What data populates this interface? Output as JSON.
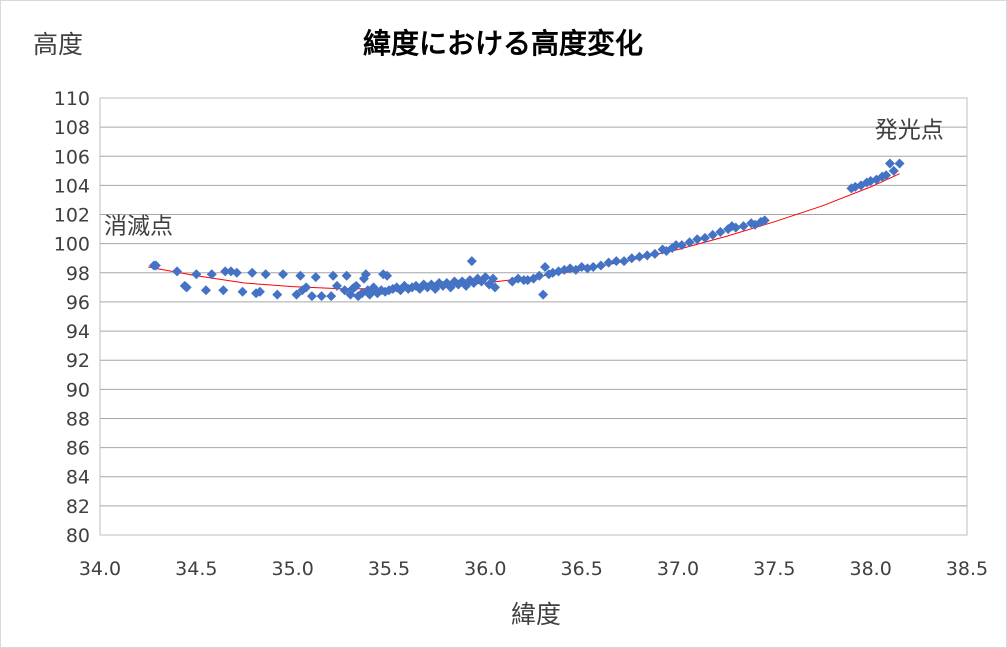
{
  "chart_data": {
    "type": "scatter",
    "title": "緯度における高度変化",
    "xlabel": "緯度",
    "ylabel": "高度",
    "xlim": [
      34.0,
      38.5
    ],
    "ylim": [
      80,
      110
    ],
    "x_ticks": [
      "34.0",
      "34.5",
      "35.0",
      "35.5",
      "36.0",
      "36.5",
      "37.0",
      "37.5",
      "38.0",
      "38.5"
    ],
    "y_ticks": [
      "80",
      "82",
      "84",
      "86",
      "88",
      "90",
      "92",
      "94",
      "96",
      "98",
      "100",
      "102",
      "104",
      "106",
      "108",
      "110"
    ],
    "grid": {
      "horizontal": true,
      "vertical": false
    },
    "legend": "none",
    "colors": {
      "points": "#4472c4",
      "trendline": "#ff0000"
    },
    "annotations": [
      {
        "text": "発光点",
        "x": 38.2,
        "y": 107.3
      },
      {
        "text": "消滅点",
        "x": 34.2,
        "y": 100.7
      }
    ],
    "trendline": {
      "type": "polynomial",
      "x": [
        34.25,
        34.5,
        34.75,
        35.0,
        35.25,
        35.5,
        35.75,
        36.0,
        36.25,
        36.5,
        36.75,
        37.0,
        37.25,
        37.5,
        37.75,
        38.0,
        38.15
      ],
      "y": [
        98.4,
        97.8,
        97.3,
        97.05,
        96.9,
        96.9,
        97.05,
        97.3,
        97.7,
        98.2,
        98.85,
        99.6,
        100.5,
        101.5,
        102.6,
        103.9,
        104.8
      ]
    },
    "series": [
      {
        "x": [
          34.28,
          34.29,
          34.4,
          34.44,
          34.45,
          34.5,
          34.55,
          34.58,
          34.64,
          34.65,
          34.68,
          34.71,
          34.74,
          34.79,
          34.81,
          34.83,
          34.86,
          34.92,
          34.95,
          35.02,
          35.04,
          35.05,
          35.07,
          35.1,
          35.12,
          35.15,
          35.2,
          35.21,
          35.23,
          35.27,
          35.28,
          35.3,
          35.31,
          35.32,
          35.33,
          35.34,
          35.36,
          35.37,
          35.38,
          35.39,
          35.4,
          35.41,
          35.42,
          35.44,
          35.46,
          35.47,
          35.48,
          35.49,
          35.5,
          35.52,
          35.54,
          35.56,
          35.58,
          35.6,
          35.62,
          35.64,
          35.66,
          35.68,
          35.7,
          35.72,
          35.74,
          35.76,
          35.78,
          35.8,
          35.82,
          35.84,
          35.86,
          35.88,
          35.9,
          35.92,
          35.93,
          35.94,
          35.96,
          35.98,
          36.0,
          36.02,
          36.04,
          36.05,
          36.14,
          36.17,
          36.2,
          36.22,
          36.25,
          36.28,
          36.3,
          36.31,
          36.33,
          36.35,
          36.38,
          36.41,
          36.44,
          36.47,
          36.5,
          36.53,
          36.56,
          36.6,
          36.64,
          36.68,
          36.72,
          36.76,
          36.8,
          36.84,
          36.88,
          36.92,
          36.94,
          36.97,
          36.99,
          37.02,
          37.06,
          37.1,
          37.14,
          37.18,
          37.22,
          37.26,
          37.28,
          37.3,
          37.34,
          37.38,
          37.4,
          37.43,
          37.45,
          37.9,
          37.92,
          37.95,
          37.98,
          38.0,
          38.03,
          38.06,
          38.08,
          38.1,
          38.12,
          38.15
        ],
        "y": [
          98.5,
          98.5,
          98.1,
          97.1,
          97.0,
          97.9,
          96.8,
          97.9,
          96.8,
          98.1,
          98.1,
          98.0,
          96.7,
          98.0,
          96.6,
          96.7,
          97.9,
          96.5,
          97.9,
          96.5,
          97.8,
          96.8,
          97.0,
          96.4,
          97.7,
          96.4,
          96.4,
          97.8,
          97.1,
          96.8,
          97.8,
          96.5,
          96.9,
          97.0,
          97.1,
          96.4,
          96.6,
          97.6,
          97.9,
          96.8,
          96.5,
          96.7,
          97.0,
          96.6,
          96.8,
          97.9,
          96.7,
          97.8,
          96.8,
          96.9,
          97.0,
          96.8,
          97.1,
          96.9,
          97.0,
          97.1,
          96.9,
          97.2,
          97.0,
          97.2,
          96.9,
          97.3,
          97.1,
          97.3,
          97.0,
          97.4,
          97.2,
          97.4,
          97.1,
          97.5,
          98.8,
          97.3,
          97.6,
          97.4,
          97.7,
          97.2,
          97.6,
          97.0,
          97.4,
          97.6,
          97.5,
          97.5,
          97.6,
          97.8,
          96.5,
          98.4,
          97.9,
          98.0,
          98.1,
          98.2,
          98.3,
          98.2,
          98.4,
          98.3,
          98.4,
          98.5,
          98.7,
          98.8,
          98.8,
          99.0,
          99.1,
          99.2,
          99.3,
          99.6,
          99.5,
          99.7,
          99.9,
          99.9,
          100.1,
          100.3,
          100.4,
          100.6,
          100.8,
          101.0,
          101.2,
          101.1,
          101.2,
          101.4,
          101.3,
          101.5,
          101.6,
          103.8,
          103.9,
          104.0,
          104.2,
          104.3,
          104.4,
          104.6,
          104.7,
          105.5,
          105.0,
          105.5
        ]
      }
    ]
  }
}
